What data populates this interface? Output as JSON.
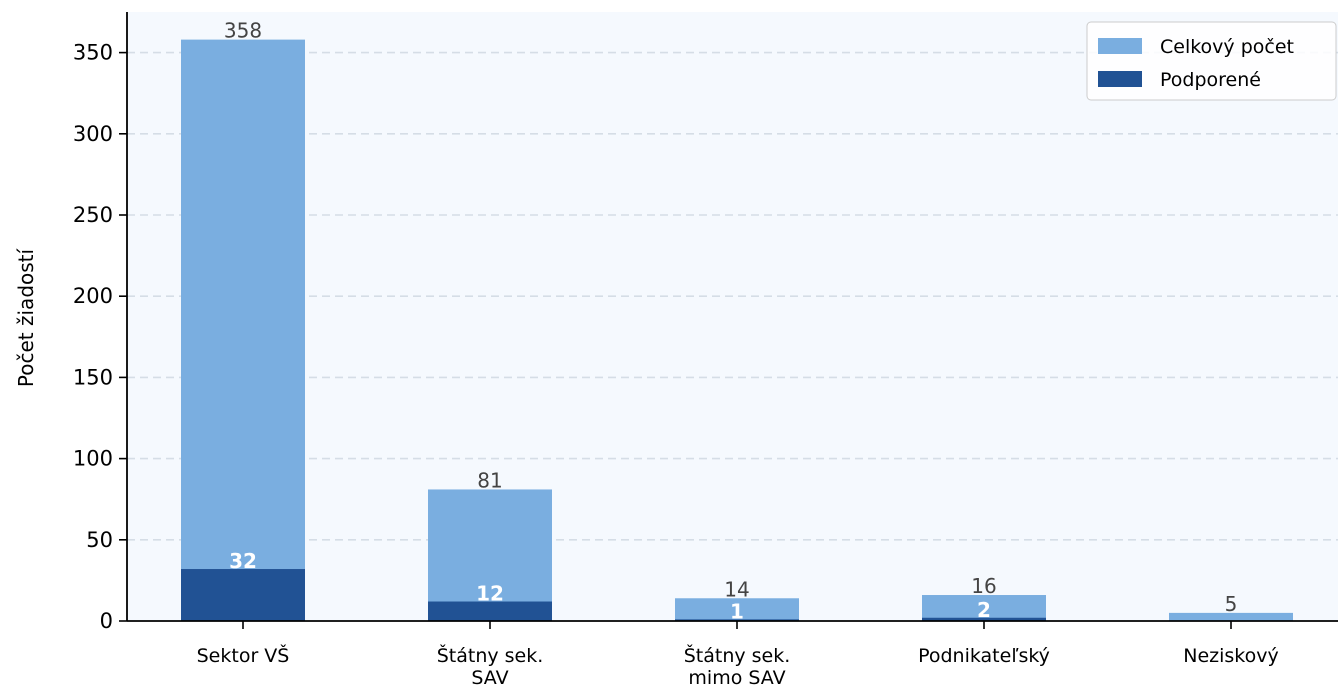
{
  "chart_data": {
    "type": "bar",
    "stacked": "overlay",
    "categories": [
      [
        "Sektor VŠ"
      ],
      [
        "Štátny sek.",
        "SAV"
      ],
      [
        "Štátny sek.",
        "mimo SAV"
      ],
      [
        "Podnikateľský"
      ],
      [
        "Neziskový"
      ]
    ],
    "series": [
      {
        "name": "Celkový počet",
        "color": "#7aaee0",
        "values": [
          358,
          81,
          14,
          16,
          5
        ],
        "labels": [
          "358",
          "81",
          "14",
          "16",
          "5"
        ]
      },
      {
        "name": "Podporené",
        "color": "#215294",
        "values": [
          32,
          12,
          1,
          2,
          0
        ],
        "labels": [
          "32",
          "12",
          "1",
          "2",
          ""
        ]
      }
    ],
    "ylabel": "Počet žiadostí",
    "xlabel": "",
    "ylim": [
      0,
      375
    ],
    "yticks": [
      "0",
      "50",
      "100",
      "150",
      "200",
      "250",
      "300",
      "350"
    ],
    "grid": "horizontal dashed",
    "legend": "top-right",
    "background": "#f5f9fe"
  }
}
